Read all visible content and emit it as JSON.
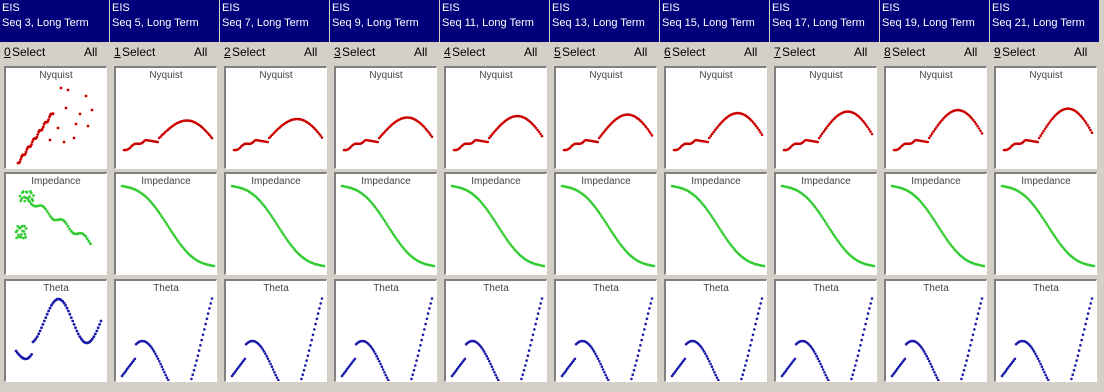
{
  "colors": {
    "header_bg": "#00007b",
    "nyquist": "#cc0000",
    "impedance": "#33cc33",
    "theta": "#1a1aaa"
  },
  "columns": [
    {
      "header_line1": "EIS",
      "header_line2": "Seq 3, Long Term",
      "index": "0",
      "select_label": "Select",
      "all_label": "All"
    },
    {
      "header_line1": "EIS",
      "header_line2": "Seq 5, Long Term",
      "index": "1",
      "select_label": "Select",
      "all_label": "All"
    },
    {
      "header_line1": "EIS",
      "header_line2": "Seq 7, Long Term",
      "index": "2",
      "select_label": "Select",
      "all_label": "All"
    },
    {
      "header_line1": "EIS",
      "header_line2": "Seq 9, Long Term",
      "index": "3",
      "select_label": "Select",
      "all_label": "All"
    },
    {
      "header_line1": "EIS",
      "header_line2": "Seq 11, Long Term",
      "index": "4",
      "select_label": "Select",
      "all_label": "All"
    },
    {
      "header_line1": "EIS",
      "header_line2": "Seq 13, Long Term",
      "index": "5",
      "select_label": "Select",
      "all_label": "All"
    },
    {
      "header_line1": "EIS",
      "header_line2": "Seq 15, Long Term",
      "index": "6",
      "select_label": "Select",
      "all_label": "All"
    },
    {
      "header_line1": "EIS",
      "header_line2": "Seq 17, Long Term",
      "index": "7",
      "select_label": "Select",
      "all_label": "All"
    },
    {
      "header_line1": "EIS",
      "header_line2": "Seq 19, Long Term",
      "index": "8",
      "select_label": "Select",
      "all_label": "All"
    },
    {
      "header_line1": "EIS",
      "header_line2": "Seq 21, Long Term",
      "index": "9",
      "select_label": "Select",
      "all_label": "All"
    }
  ],
  "plot_labels": {
    "nyquist": "Nyquist",
    "impedance": "Impedance",
    "theta": "Theta"
  }
}
